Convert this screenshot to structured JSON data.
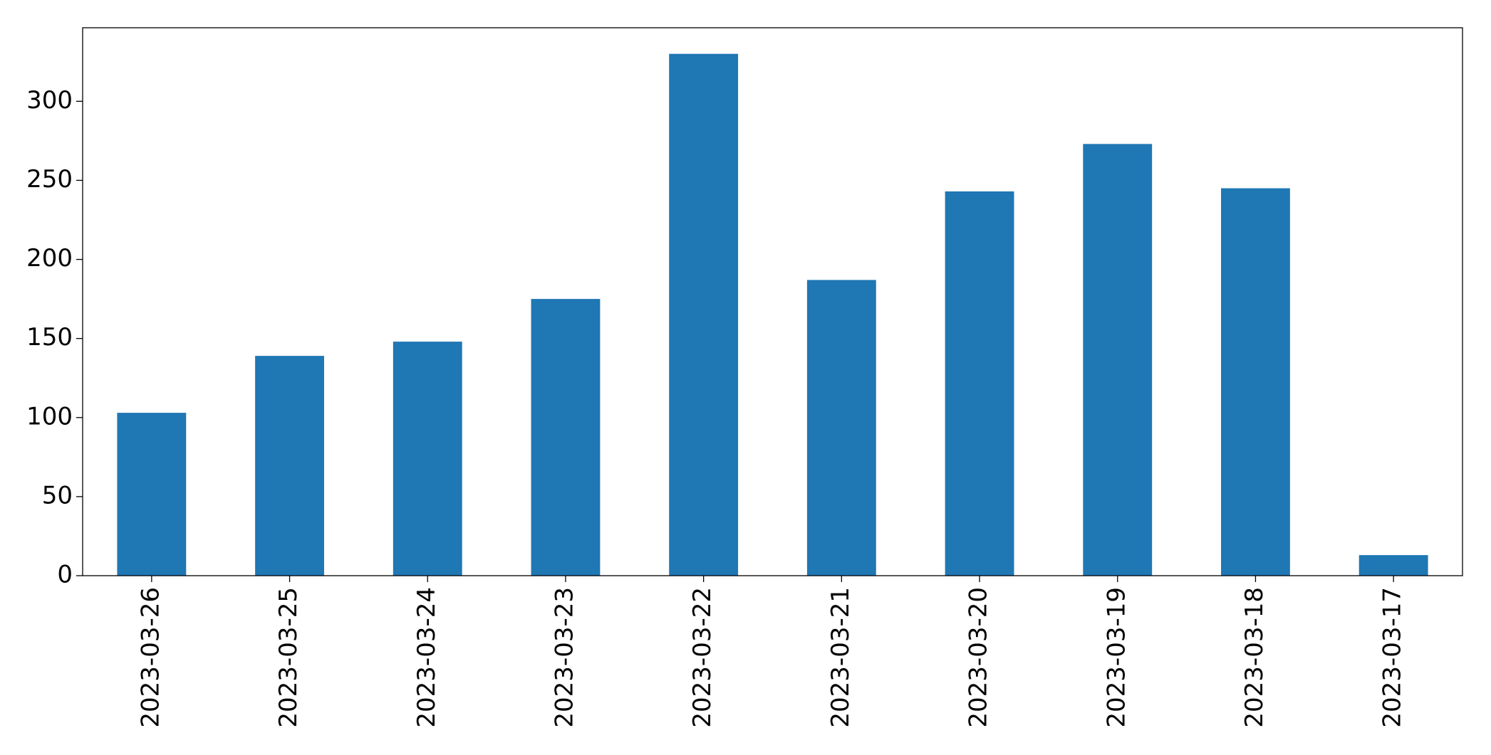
{
  "chart_data": {
    "type": "bar",
    "categories": [
      "2023-03-26",
      "2023-03-25",
      "2023-03-24",
      "2023-03-23",
      "2023-03-22",
      "2023-03-21",
      "2023-03-20",
      "2023-03-19",
      "2023-03-18",
      "2023-03-17"
    ],
    "values": [
      103,
      139,
      148,
      175,
      330,
      187,
      243,
      273,
      245,
      13
    ],
    "color": "#1f77b4",
    "ylim": [
      0,
      346.5
    ],
    "yticks": [
      0,
      50,
      100,
      150,
      200,
      250,
      300
    ],
    "grid": false
  }
}
